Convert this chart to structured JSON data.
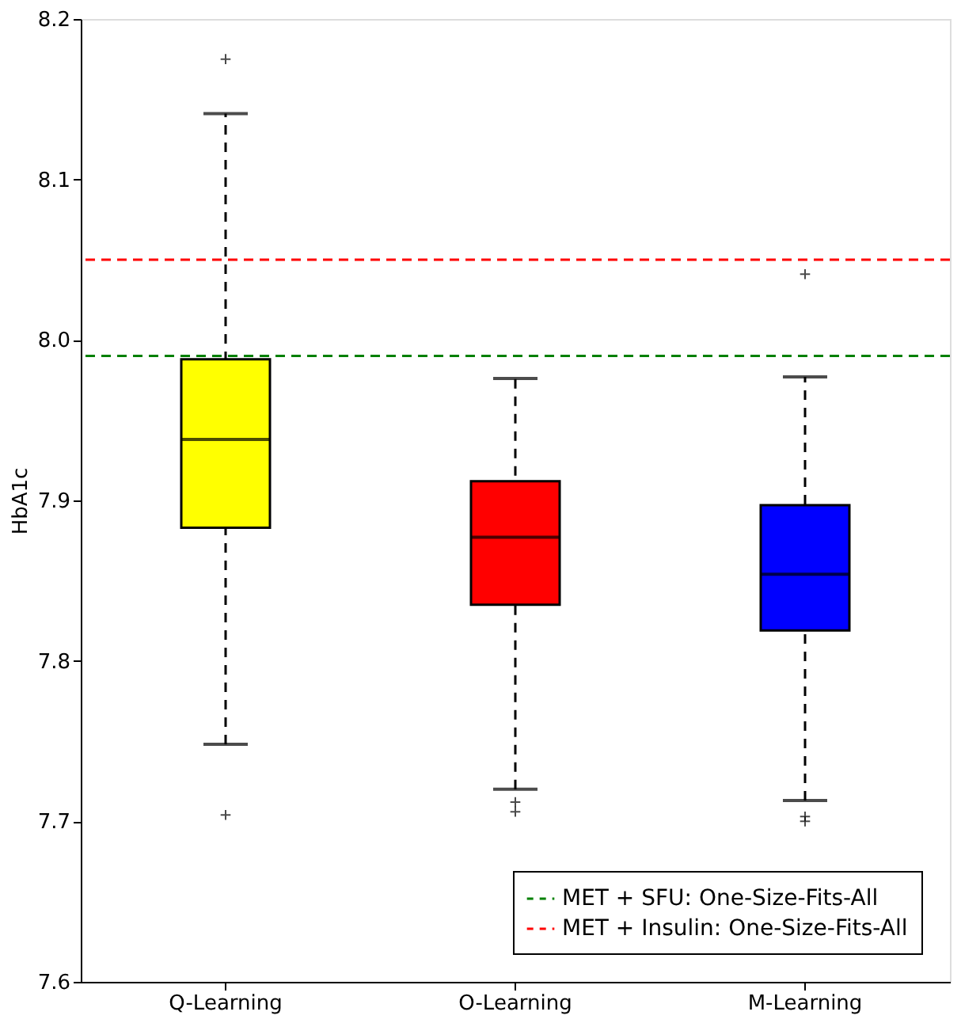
{
  "chart_data": {
    "type": "box",
    "ylabel": "HbA1c",
    "categories": [
      "Q-Learning",
      "O-Learning",
      "M-Learning"
    ],
    "colors": [
      "#ffff00",
      "#ff0000",
      "#0000ff"
    ],
    "boxes": [
      {
        "low": 7.748,
        "q1": 7.883,
        "median": 7.938,
        "q3": 7.988,
        "high": 8.141,
        "outliers": [
          8.175,
          7.704
        ]
      },
      {
        "low": 7.72,
        "q1": 7.835,
        "median": 7.877,
        "q3": 7.912,
        "high": 7.976,
        "outliers": [
          7.712,
          7.706
        ]
      },
      {
        "low": 7.713,
        "q1": 7.819,
        "median": 7.854,
        "q3": 7.897,
        "high": 7.977,
        "outliers": [
          8.041,
          7.703,
          7.7
        ]
      }
    ],
    "ylim": [
      7.6,
      8.2
    ],
    "yticks": [
      7.6,
      7.7,
      7.8,
      7.9,
      {
        "value": 8.0,
        "label": "8.0"
      },
      8.1,
      8.2
    ],
    "ref_lines": [
      {
        "axis": "y",
        "value": 7.99,
        "label": "MET + SFU: One-Size-Fits-All",
        "color": "#008000",
        "line_style": "dashed"
      },
      {
        "axis": "y",
        "value": 8.05,
        "label": "MET + Insulin: One-Size-Fits-All",
        "color": "#ff0000",
        "line_style": "dashed"
      }
    ],
    "marker": "cross",
    "grid": false,
    "legend": "bottom right"
  }
}
